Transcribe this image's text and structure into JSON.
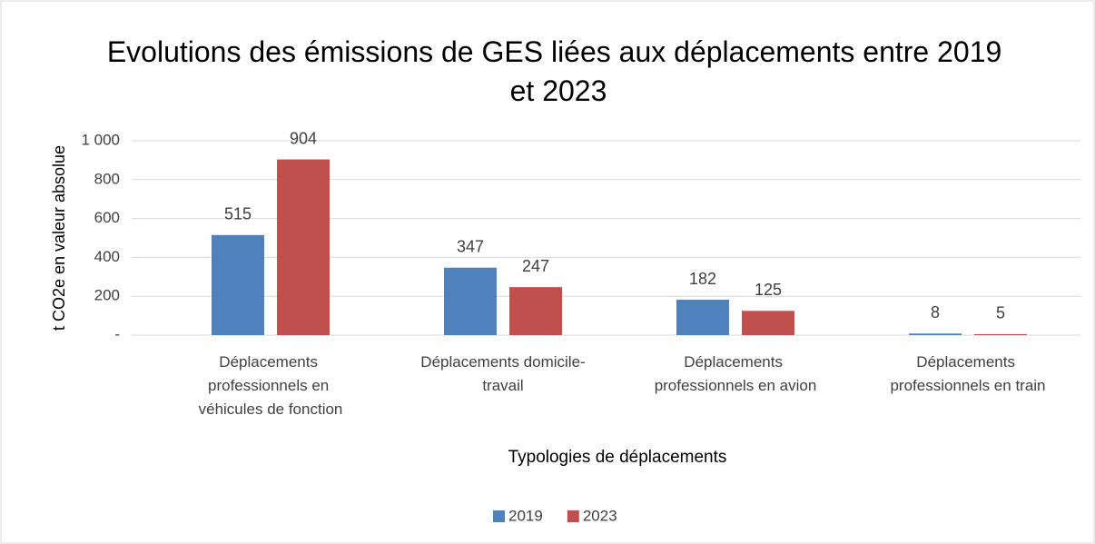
{
  "chart_data": {
    "type": "bar",
    "title": "Evolutions des émissions de GES liées aux déplacements entre 2019 et 2023",
    "xlabel": "Typologies de déplacements",
    "ylabel": "t CO2e en valeur absolue",
    "categories": [
      "Déplacements professionnels en véhicules de fonction",
      "Déplacements domicile-travail",
      "Déplacements professionnels en avion",
      "Déplacements professionnels en train"
    ],
    "series": [
      {
        "name": "2019",
        "color": "#4f81bd",
        "values": [
          515,
          347,
          182,
          8
        ]
      },
      {
        "name": "2023",
        "color": "#c0504d",
        "values": [
          904,
          247,
          125,
          5
        ]
      }
    ],
    "ylim": [
      0,
      1000
    ],
    "yticks": [
      {
        "value": 0,
        "label": "-"
      },
      200,
      400,
      600,
      800,
      {
        "value": 1000,
        "label": "1 000"
      }
    ],
    "grid": true,
    "legend": "bottom"
  }
}
